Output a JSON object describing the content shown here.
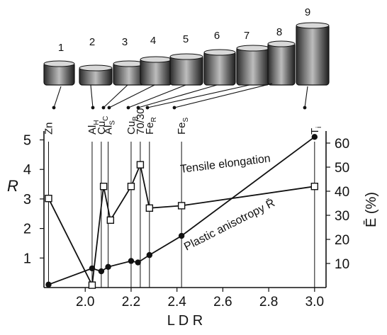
{
  "chart_data": {
    "type": "line",
    "xlabel": "L D R",
    "ylabel_left": "R",
    "ylabel_right": "Ē (%)",
    "x_ticks": [
      "2.0",
      "2.2",
      "2.4",
      "2.6",
      "2.8",
      "3.0"
    ],
    "x_tick_values": [
      2.0,
      2.2,
      2.4,
      2.6,
      2.8,
      3.0
    ],
    "y_left_ticks": [
      "1",
      "2",
      "3",
      "4",
      "5"
    ],
    "y_left_tick_values": [
      1,
      2,
      3,
      4,
      5
    ],
    "y_right_ticks": [
      "10",
      "20",
      "30",
      "40",
      "50",
      "60"
    ],
    "y_right_tick_values": [
      10,
      20,
      30,
      40,
      50,
      60
    ],
    "xlim": [
      1.82,
      3.05
    ],
    "ylim_left": [
      0,
      5.3
    ],
    "ylim_right": [
      0,
      65
    ],
    "materials": [
      {
        "label": "Zn",
        "sub": "",
        "ldr": 1.84
      },
      {
        "label": "Al",
        "sub": "H",
        "ldr": 2.03
      },
      {
        "label": "Cu",
        "sub": "C",
        "ldr": 2.07
      },
      {
        "label": "Al",
        "sub": "S",
        "ldr": 2.1
      },
      {
        "label": "Cu",
        "sub": "B",
        "ldr": 2.2
      },
      {
        "label": "70/30",
        "sub": "",
        "ldr": 2.24
      },
      {
        "label": "Fe",
        "sub": "R",
        "ldr": 2.28
      },
      {
        "label": "Fe",
        "sub": "S",
        "ldr": 2.42
      },
      {
        "label": "T",
        "sub": "i",
        "ldr": 3.0
      }
    ],
    "series": [
      {
        "name": "Tensile elongation",
        "axis": "right",
        "marker": "open-square",
        "x": [
          1.84,
          2.03,
          2.08,
          2.11,
          2.2,
          2.24,
          2.28,
          2.42,
          3.0
        ],
        "y": [
          37,
          1,
          42,
          28,
          42,
          51,
          33,
          34,
          42
        ]
      },
      {
        "name": "Plastic anisotropy R̄",
        "axis": "left",
        "marker": "filled-circle",
        "x": [
          1.84,
          2.03,
          2.07,
          2.1,
          2.2,
          2.23,
          2.28,
          2.42,
          3.0
        ],
        "y": [
          0.1,
          0.65,
          0.55,
          0.7,
          0.9,
          0.85,
          1.1,
          1.75,
          5.1
        ]
      }
    ],
    "cups": [
      "1",
      "2",
      "3",
      "4",
      "5",
      "6",
      "7",
      "8",
      "9"
    ]
  }
}
